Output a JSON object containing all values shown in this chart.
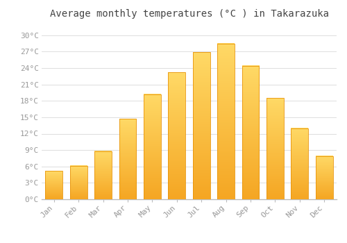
{
  "months": [
    "Jan",
    "Feb",
    "Mar",
    "Apr",
    "May",
    "Jun",
    "Jul",
    "Aug",
    "Sep",
    "Oct",
    "Nov",
    "Dec"
  ],
  "temperatures": [
    5.2,
    6.1,
    8.8,
    14.7,
    19.2,
    23.2,
    26.9,
    28.5,
    24.4,
    18.5,
    13.0,
    7.9
  ],
  "bar_color_bottom": "#F5A623",
  "bar_color_top": "#FFD966",
  "bar_edge_color": "#E8940A",
  "title": "Average monthly temperatures (°C ) in Takarazuka",
  "title_fontsize": 10,
  "ylabel_ticks": [
    0,
    3,
    6,
    9,
    12,
    15,
    18,
    21,
    24,
    27,
    30
  ],
  "ylim": [
    0,
    32
  ],
  "background_color": "#ffffff",
  "grid_color": "#dddddd",
  "tick_label_color": "#999999",
  "axis_label_fontsize": 8,
  "font_family": "monospace",
  "bar_width": 0.7
}
